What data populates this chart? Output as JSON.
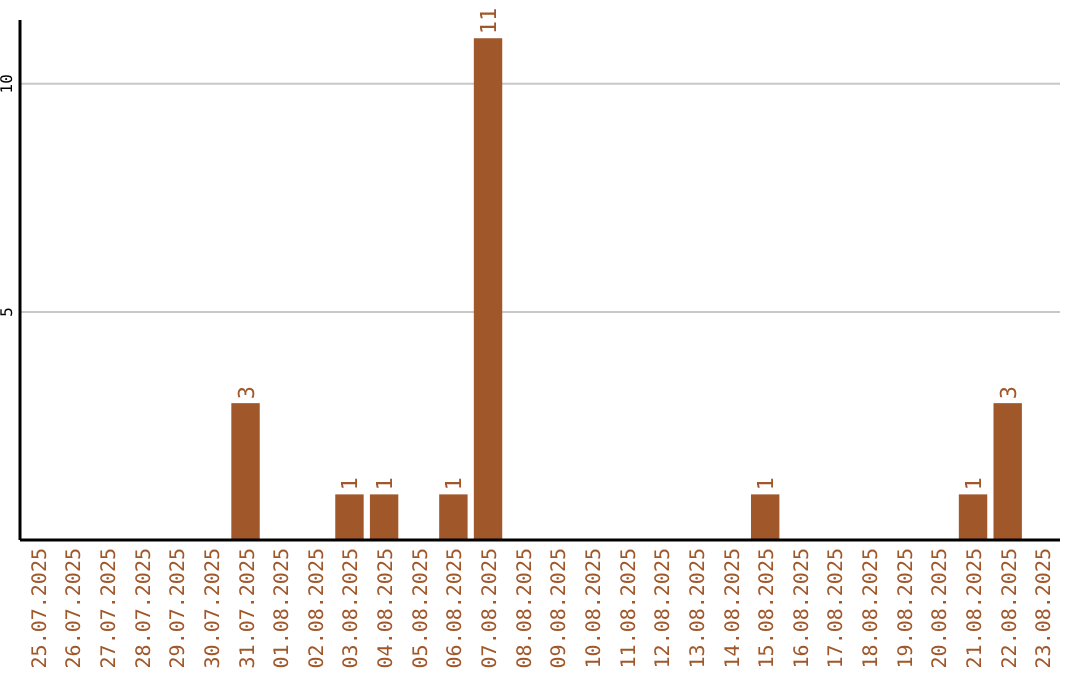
{
  "chart_data": {
    "type": "bar",
    "categories": [
      "25.07.2025",
      "26.07.2025",
      "27.07.2025",
      "28.07.2025",
      "29.07.2025",
      "30.07.2025",
      "31.07.2025",
      "01.08.2025",
      "02.08.2025",
      "03.08.2025",
      "04.08.2025",
      "05.08.2025",
      "06.08.2025",
      "07.08.2025",
      "08.08.2025",
      "09.08.2025",
      "10.08.2025",
      "11.08.2025",
      "12.08.2025",
      "13.08.2025",
      "14.08.2025",
      "15.08.2025",
      "16.08.2025",
      "17.08.2025",
      "18.08.2025",
      "19.08.2025",
      "20.08.2025",
      "21.08.2025",
      "22.08.2025",
      "23.08.2025"
    ],
    "values": [
      0,
      0,
      0,
      0,
      0,
      0,
      3,
      0,
      0,
      1,
      1,
      0,
      1,
      11,
      0,
      0,
      0,
      0,
      0,
      0,
      0,
      1,
      0,
      0,
      0,
      0,
      0,
      1,
      3,
      0
    ],
    "value_labels": [
      null,
      null,
      null,
      null,
      null,
      null,
      "3",
      null,
      null,
      "1",
      "1",
      null,
      "1",
      "11",
      null,
      null,
      null,
      null,
      null,
      null,
      null,
      "1",
      null,
      null,
      null,
      null,
      null,
      "1",
      "3",
      null
    ],
    "color": "#a0572a",
    "ylim": [
      0,
      11.4
    ],
    "yticks": [
      5,
      10
    ],
    "grid": "y"
  }
}
